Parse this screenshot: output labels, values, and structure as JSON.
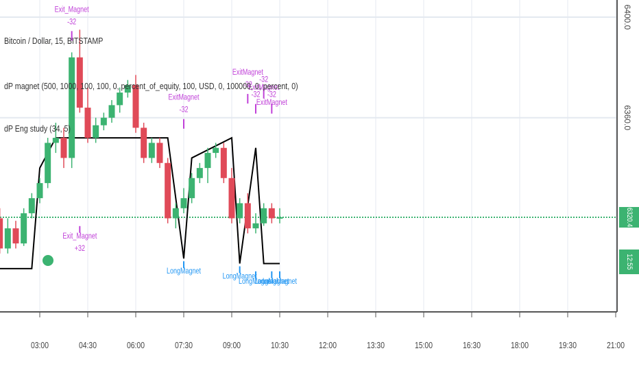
{
  "legends": {
    "symbol": "Bitcoin / Dollar, 15, BITSTAMP",
    "strategy": "dP magnet (500, 1000, 100, 100, 0, percent_of_equity, 100, USD, 0, 100000, 0, percent, 0)",
    "study": "dP Eng study (34, 5)"
  },
  "last_price": {
    "label": "6320.4",
    "value": 6320.4,
    "color": "#3cb371"
  },
  "countdown": "12:55",
  "colors": {
    "up": "#3cb371",
    "down": "#e04a58",
    "level": "#000000",
    "signal_long": "#2196f3",
    "signal_exit": "#c040d8"
  },
  "chart_data": {
    "type": "candlestick",
    "x_ticks": [
      "03:00",
      "04:30",
      "06:00",
      "07:30",
      "09:00",
      "10:30",
      "12:00",
      "13:30",
      "15:00",
      "16:30",
      "18:00",
      "19:30",
      "21:00"
    ],
    "y_ticks": [
      "6400.0",
      "6360.0",
      "6320.4"
    ],
    "ylim": [
      6280,
      6410
    ],
    "candles": [
      {
        "t": "01:45",
        "o": 6320,
        "h": 6324,
        "l": 6306,
        "c": 6308
      },
      {
        "t": "02:00",
        "o": 6308,
        "h": 6320,
        "l": 6306,
        "c": 6316
      },
      {
        "t": "02:15",
        "o": 6316,
        "h": 6319,
        "l": 6308,
        "c": 6310
      },
      {
        "t": "02:30",
        "o": 6310,
        "h": 6324,
        "l": 6309,
        "c": 6322
      },
      {
        "t": "02:45",
        "o": 6322,
        "h": 6330,
        "l": 6320,
        "c": 6328
      },
      {
        "t": "03:00",
        "o": 6328,
        "h": 6336,
        "l": 6326,
        "c": 6334
      },
      {
        "t": "03:15",
        "o": 6334,
        "h": 6352,
        "l": 6332,
        "c": 6350
      },
      {
        "t": "03:30",
        "o": 6350,
        "h": 6358,
        "l": 6346,
        "c": 6352
      },
      {
        "t": "03:45",
        "o": 6352,
        "h": 6356,
        "l": 6340,
        "c": 6344
      },
      {
        "t": "04:00",
        "o": 6344,
        "h": 6386,
        "l": 6340,
        "c": 6384
      },
      {
        "t": "04:15",
        "o": 6384,
        "h": 6395,
        "l": 6362,
        "c": 6364
      },
      {
        "t": "04:30",
        "o": 6364,
        "h": 6372,
        "l": 6350,
        "c": 6352
      },
      {
        "t": "04:45",
        "o": 6352,
        "h": 6360,
        "l": 6350,
        "c": 6357
      },
      {
        "t": "05:00",
        "o": 6357,
        "h": 6362,
        "l": 6355,
        "c": 6360
      },
      {
        "t": "05:15",
        "o": 6360,
        "h": 6367,
        "l": 6358,
        "c": 6365
      },
      {
        "t": "05:30",
        "o": 6365,
        "h": 6372,
        "l": 6362,
        "c": 6370
      },
      {
        "t": "05:45",
        "o": 6370,
        "h": 6375,
        "l": 6368,
        "c": 6373
      },
      {
        "t": "06:00",
        "o": 6373,
        "h": 6377,
        "l": 6354,
        "c": 6356
      },
      {
        "t": "06:15",
        "o": 6356,
        "h": 6358,
        "l": 6342,
        "c": 6344
      },
      {
        "t": "06:30",
        "o": 6344,
        "h": 6352,
        "l": 6342,
        "c": 6350
      },
      {
        "t": "06:45",
        "o": 6350,
        "h": 6352,
        "l": 6340,
        "c": 6342
      },
      {
        "t": "07:00",
        "o": 6342,
        "h": 6344,
        "l": 6318,
        "c": 6320
      },
      {
        "t": "07:15",
        "o": 6320,
        "h": 6326,
        "l": 6316,
        "c": 6324
      },
      {
        "t": "07:30",
        "o": 6324,
        "h": 6332,
        "l": 6322,
        "c": 6328
      },
      {
        "t": "07:45",
        "o": 6328,
        "h": 6338,
        "l": 6326,
        "c": 6336
      },
      {
        "t": "08:00",
        "o": 6336,
        "h": 6342,
        "l": 6334,
        "c": 6340
      },
      {
        "t": "08:15",
        "o": 6340,
        "h": 6348,
        "l": 6334,
        "c": 6346
      },
      {
        "t": "08:30",
        "o": 6346,
        "h": 6350,
        "l": 6344,
        "c": 6348
      },
      {
        "t": "08:45",
        "o": 6348,
        "h": 6350,
        "l": 6334,
        "c": 6336
      },
      {
        "t": "09:00",
        "o": 6336,
        "h": 6340,
        "l": 6318,
        "c": 6320
      },
      {
        "t": "09:15",
        "o": 6320,
        "h": 6328,
        "l": 6318,
        "c": 6326
      },
      {
        "t": "09:30",
        "o": 6326,
        "h": 6330,
        "l": 6314,
        "c": 6316
      },
      {
        "t": "09:45",
        "o": 6316,
        "h": 6322,
        "l": 6314,
        "c": 6318
      },
      {
        "t": "10:00",
        "o": 6318,
        "h": 6326,
        "l": 6317,
        "c": 6324
      },
      {
        "t": "10:15",
        "o": 6324,
        "h": 6326,
        "l": 6318,
        "c": 6320
      },
      {
        "t": "10:30",
        "o": 6320,
        "h": 6324,
        "l": 6318,
        "c": 6320.4
      }
    ],
    "level_line": [
      {
        "t": "01:30",
        "y": 6300
      },
      {
        "t": "02:45",
        "y": 6300
      },
      {
        "t": "03:00",
        "y": 6340
      },
      {
        "t": "03:30",
        "y": 6352
      },
      {
        "t": "07:00",
        "y": 6352
      },
      {
        "t": "07:30",
        "y": 6304
      },
      {
        "t": "07:45",
        "y": 6344
      },
      {
        "t": "09:00",
        "y": 6352
      },
      {
        "t": "09:15",
        "y": 6302
      },
      {
        "t": "09:45",
        "y": 6348
      },
      {
        "t": "10:00",
        "y": 6302
      },
      {
        "t": "10:30",
        "y": 6302
      }
    ],
    "annotations": [
      {
        "t": "04:00",
        "y": 6395,
        "text": "-32",
        "kind": "exit",
        "pos": "above"
      },
      {
        "t": "04:00",
        "y": 6395,
        "text": "Exit_Magnet",
        "kind": "exit",
        "pos": "above"
      },
      {
        "t": "04:15",
        "y": 6318,
        "text": "Exit_Magnet",
        "kind": "exit",
        "pos": "below"
      },
      {
        "t": "04:15",
        "y": 6318,
        "text": "+32",
        "kind": "exit",
        "pos": "below"
      },
      {
        "t": "07:30",
        "y": 6360,
        "text": "-32",
        "kind": "exit",
        "pos": "above"
      },
      {
        "t": "07:30",
        "y": 6360,
        "text": "ExitMagnet",
        "kind": "exit",
        "pos": "above"
      },
      {
        "t": "07:30",
        "y": 6304,
        "text": "LongMagnet",
        "kind": "long",
        "pos": "below"
      },
      {
        "t": "09:30",
        "y": 6370,
        "text": "-32",
        "kind": "exit",
        "pos": "above"
      },
      {
        "t": "09:30",
        "y": 6370,
        "text": "ExitMagnet",
        "kind": "exit",
        "pos": "above"
      },
      {
        "t": "09:45",
        "y": 6366,
        "text": "-32",
        "kind": "exit",
        "pos": "above"
      },
      {
        "t": "10:00",
        "y": 6372,
        "text": "-32",
        "kind": "exit",
        "pos": "above"
      },
      {
        "t": "10:00",
        "y": 6364,
        "text": "ExitMagnet",
        "kind": "exit",
        "pos": "above"
      },
      {
        "t": "10:15",
        "y": 6366,
        "text": "-32",
        "kind": "exit",
        "pos": "above"
      },
      {
        "t": "10:15",
        "y": 6358,
        "text": "ExitMagnet",
        "kind": "exit",
        "pos": "above"
      },
      {
        "t": "09:15",
        "y": 6302,
        "text": "LongMagnet",
        "kind": "long",
        "pos": "below"
      },
      {
        "t": "09:45",
        "y": 6300,
        "text": "LongMagnet",
        "kind": "long",
        "pos": "below"
      },
      {
        "t": "10:15",
        "y": 6300,
        "text": "LongMagnet",
        "kind": "long",
        "pos": "below"
      },
      {
        "t": "10:30",
        "y": 6300,
        "text": "LongMagnet",
        "kind": "long",
        "pos": "below"
      }
    ]
  }
}
